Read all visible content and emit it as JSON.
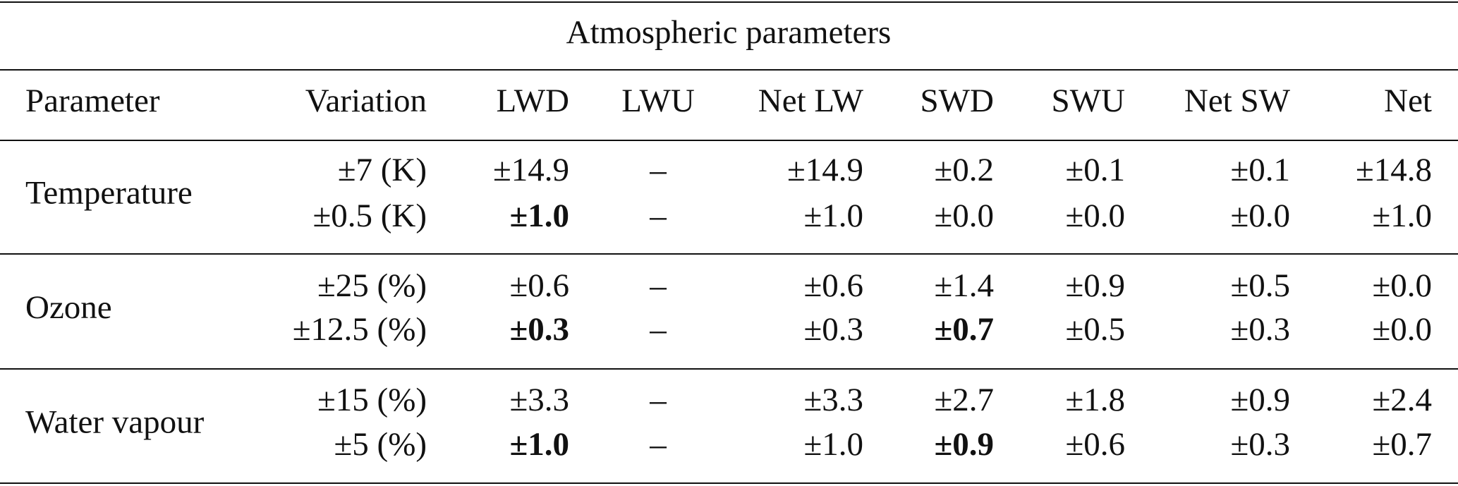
{
  "table": {
    "title": "Atmospheric parameters",
    "columns": [
      "Parameter",
      "Variation",
      "LWD",
      "LWU",
      "Net LW",
      "SWD",
      "SWU",
      "Net SW",
      "Net"
    ],
    "groups": [
      {
        "parameter": "Temperature",
        "rows": [
          {
            "cells": [
              "±7 (K)",
              "±14.9",
              "–",
              "±14.9",
              "±0.2",
              "±0.1",
              "±0.1",
              "±14.8"
            ],
            "bold": []
          },
          {
            "cells": [
              "±0.5 (K)",
              "±1.0",
              "–",
              "±1.0",
              "±0.0",
              "±0.0",
              "±0.0",
              "±1.0"
            ],
            "bold": [
              1
            ]
          }
        ]
      },
      {
        "parameter": "Ozone",
        "rows": [
          {
            "cells": [
              "±25 (%)",
              "±0.6",
              "–",
              "±0.6",
              "±1.4",
              "±0.9",
              "±0.5",
              "±0.0"
            ],
            "bold": []
          },
          {
            "cells": [
              "±12.5 (%)",
              "±0.3",
              "–",
              "±0.3",
              "±0.7",
              "±0.5",
              "±0.3",
              "±0.0"
            ],
            "bold": [
              1,
              4
            ]
          }
        ]
      },
      {
        "parameter": "Water vapour",
        "rows": [
          {
            "cells": [
              "±15 (%)",
              "±3.3",
              "–",
              "±3.3",
              "±2.7",
              "±1.8",
              "±0.9",
              "±2.4"
            ],
            "bold": []
          },
          {
            "cells": [
              "±5 (%)",
              "±1.0",
              "–",
              "±1.0",
              "±0.9",
              "±0.6",
              "±0.3",
              "±0.7"
            ],
            "bold": [
              1,
              4
            ]
          }
        ]
      }
    ]
  }
}
